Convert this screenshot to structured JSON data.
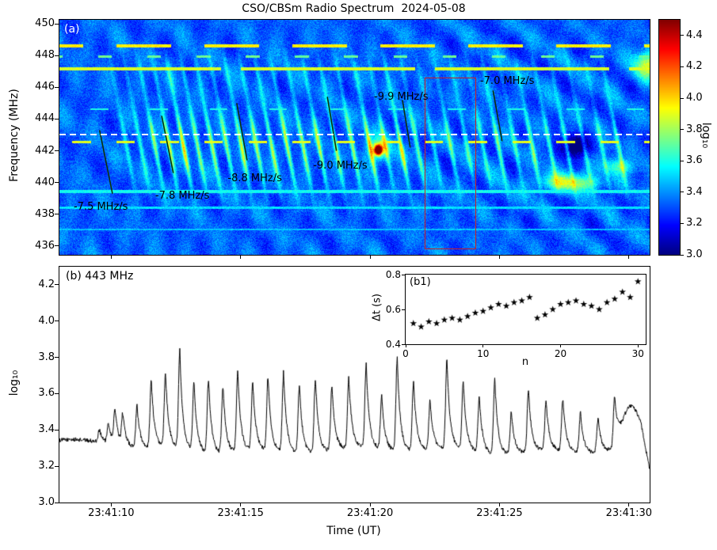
{
  "labels": {
    "title": "CSO/CBSm Radio Spectrum  2024-05-08",
    "panel_a": "(a)",
    "panel_b": "(b) 443 MHz",
    "inset": "(b1)",
    "ylabel_a": "Frequency (MHz)",
    "ylabel_b": "log₁₀",
    "colorbar_label": "log₁₀",
    "xlabel": "Time (UT)",
    "inset_ylabel": "Δt (s)",
    "inset_xlabel": "n"
  },
  "colors": {
    "background": "#ffffff",
    "axis": "#000000",
    "curve": "#000000",
    "roi_rect": "#cc2222",
    "dashed_line": "#ffffff",
    "drift_segment": "#0d330d",
    "annotation_text": "#000000",
    "panel_a_label": "#ffffff",
    "colormap": "jet"
  },
  "chart_data": [
    {
      "type": "heatmap",
      "name": "dynamic-spectrum",
      "title": "CSO/CBSm Radio Spectrum  2024-05-08",
      "xlabel": "Time (UT)",
      "ylabel": "Frequency (MHz)",
      "x_tick_labels": [
        "23:41:10",
        "23:41:15",
        "23:41:20",
        "23:41:25",
        "23:41:30"
      ],
      "x_tick_seconds": [
        10,
        15,
        20,
        25,
        30
      ],
      "x_range_seconds": [
        8.0,
        30.8
      ],
      "y_ticks_mhz": [
        436,
        438,
        440,
        442,
        444,
        446,
        448,
        450
      ],
      "y_range_mhz": [
        435.45,
        450.25
      ],
      "colorbar": {
        "label": "log₁₀",
        "ticks": [
          3.0,
          3.2,
          3.4,
          3.6,
          3.8,
          4.0,
          4.2,
          4.4
        ],
        "range": [
          3.0,
          4.5
        ]
      },
      "reference_line_mhz": 443,
      "roi_rect": {
        "t0_s": 22.1,
        "t1_s": 24.05,
        "f0_mhz": 435.9,
        "f1_mhz": 446.6
      },
      "annotations": [
        {
          "label": "-7.5 MHz/s",
          "t_s": 8.55,
          "f_mhz": 438.4,
          "segment": [
            9.55,
            443.3,
            10.05,
            439.3
          ]
        },
        {
          "label": "-7.8 MHz/s",
          "t_s": 11.7,
          "f_mhz": 439.1,
          "segment": [
            11.95,
            444.2,
            12.4,
            440.6
          ]
        },
        {
          "label": "-8.8 MHz/s",
          "t_s": 14.5,
          "f_mhz": 440.2,
          "segment": [
            14.85,
            445.0,
            15.25,
            441.4
          ]
        },
        {
          "label": "-9.0 MHz/s",
          "t_s": 17.8,
          "f_mhz": 441.0,
          "segment": [
            18.35,
            445.4,
            18.7,
            442.0
          ]
        },
        {
          "label": "-9.9 MHz/s",
          "t_s": 20.15,
          "f_mhz": 445.3,
          "segment": [
            21.25,
            445.2,
            21.55,
            442.2
          ]
        },
        {
          "label": "-7.0 MHz/s",
          "t_s": 24.25,
          "f_mhz": 446.3,
          "segment": [
            24.75,
            445.8,
            25.1,
            442.6
          ]
        }
      ],
      "fiber_drift_mhz_per_s": -8.5,
      "pulse_times_s": [
        10.45,
        11.0,
        11.55,
        12.1,
        12.65,
        13.2,
        13.76,
        14.32,
        14.89,
        15.47,
        16.06,
        16.66,
        17.27,
        17.89,
        18.53,
        19.18,
        19.85,
        20.45,
        21.05,
        21.68,
        22.32,
        22.97,
        23.6,
        24.22,
        24.82,
        25.46,
        26.12,
        26.8,
        27.45,
        28.13,
        28.81,
        29.45
      ],
      "pulse_peak_log10": [
        3.5,
        3.56,
        3.7,
        3.74,
        3.87,
        3.71,
        3.74,
        3.69,
        3.77,
        3.71,
        3.74,
        3.77,
        3.71,
        3.74,
        3.69,
        3.72,
        3.79,
        3.62,
        3.84,
        3.71,
        3.6,
        3.81,
        3.71,
        3.64,
        3.74,
        3.56,
        3.67,
        3.6,
        3.62,
        3.55,
        3.52,
        3.6
      ],
      "hotspot": {
        "t_s": 20.32,
        "f_mhz": 442.05,
        "log10": 4.5
      },
      "rfi_lines": [
        {
          "f_mhz": 448.62,
          "width_mhz": 0.1,
          "log10": 3.95,
          "dash_period_s": 3.4,
          "dash_duty": 0.62
        },
        {
          "f_mhz": 447.95,
          "width_mhz": 0.07,
          "log10": 3.72,
          "dash_period_s": 1.9,
          "dash_duty": 0.28
        },
        {
          "f_mhz": 447.15,
          "width_mhz": 0.09,
          "log10": 3.88,
          "dash_period_s": 7.5,
          "dash_duty": 0.9
        },
        {
          "f_mhz": 444.62,
          "width_mhz": 0.06,
          "log10": 3.6,
          "dash_period_s": 2.3,
          "dash_duty": 0.3
        },
        {
          "f_mhz": 442.55,
          "width_mhz": 0.08,
          "log10": 3.9,
          "dash_period_s": 1.7,
          "dash_duty": 0.42
        },
        {
          "f_mhz": 439.45,
          "width_mhz": 0.09,
          "log10": 3.58,
          "dash_period_s": 1,
          "dash_duty": 1
        },
        {
          "f_mhz": 438.42,
          "width_mhz": 0.07,
          "log10": 3.52,
          "dash_period_s": 1,
          "dash_duty": 1
        },
        {
          "f_mhz": 437.05,
          "width_mhz": 0.06,
          "log10": 3.48,
          "dash_period_s": 1,
          "dash_duty": 1
        }
      ]
    },
    {
      "type": "line",
      "name": "light-curve-443mhz",
      "label": "(b) 443 MHz",
      "xlabel": "Time (UT)",
      "ylabel": "log₁₀",
      "x_tick_labels": [
        "23:41:10",
        "23:41:15",
        "23:41:20",
        "23:41:25",
        "23:41:30"
      ],
      "x_tick_seconds": [
        10,
        15,
        20,
        25,
        30
      ],
      "x_range_seconds": [
        8.0,
        30.8
      ],
      "y_ticks": [
        3.0,
        3.2,
        3.4,
        3.6,
        3.8,
        4.0,
        4.2
      ],
      "y_range": [
        3.0,
        4.3
      ],
      "baseline_log10": 3.33,
      "pre_pulses": [
        [
          9.55,
          3.4
        ],
        [
          9.9,
          3.44
        ],
        [
          10.15,
          3.52
        ]
      ],
      "pulse_times_s": [
        10.45,
        11.0,
        11.55,
        12.1,
        12.65,
        13.2,
        13.76,
        14.32,
        14.89,
        15.47,
        16.06,
        16.66,
        17.27,
        17.89,
        18.53,
        19.18,
        19.85,
        20.45,
        21.05,
        21.68,
        22.32,
        22.97,
        23.6,
        24.22,
        24.82,
        25.46,
        26.12,
        26.8,
        27.45,
        28.13,
        28.81,
        29.45
      ],
      "pulse_peak_log10": [
        3.5,
        3.56,
        3.7,
        3.74,
        3.87,
        3.71,
        3.74,
        3.69,
        3.77,
        3.71,
        3.74,
        3.77,
        3.71,
        3.74,
        3.69,
        3.72,
        3.79,
        3.62,
        3.84,
        3.71,
        3.6,
        3.81,
        3.71,
        3.64,
        3.74,
        3.56,
        3.67,
        3.6,
        3.62,
        3.55,
        3.52,
        3.6
      ],
      "tail": {
        "hump_t_s": 30.05,
        "hump_amp": 0.15,
        "hump_width_s": 0.45,
        "drop_start_s": 30.45,
        "drop_rate": 0.6
      }
    },
    {
      "type": "scatter",
      "name": "pulse-interval",
      "label": "(b1)",
      "xlabel": "n",
      "ylabel": "Δt (s)",
      "x_ticks": [
        0,
        10,
        20,
        30
      ],
      "x_range": [
        0,
        31
      ],
      "y_ticks": [
        0.4,
        0.6,
        0.8
      ],
      "y_range": [
        0.4,
        0.8
      ],
      "marker": "star",
      "n": [
        1,
        2,
        3,
        4,
        5,
        6,
        7,
        8,
        9,
        10,
        11,
        12,
        13,
        14,
        15,
        16,
        17,
        18,
        19,
        20,
        21,
        22,
        23,
        24,
        25,
        26,
        27,
        28,
        29,
        30
      ],
      "dt_s": [
        0.52,
        0.5,
        0.53,
        0.52,
        0.54,
        0.55,
        0.54,
        0.56,
        0.58,
        0.59,
        0.61,
        0.63,
        0.62,
        0.64,
        0.65,
        0.67,
        0.55,
        0.57,
        0.6,
        0.63,
        0.64,
        0.65,
        0.63,
        0.62,
        0.6,
        0.64,
        0.66,
        0.7,
        0.67,
        0.76
      ]
    }
  ]
}
